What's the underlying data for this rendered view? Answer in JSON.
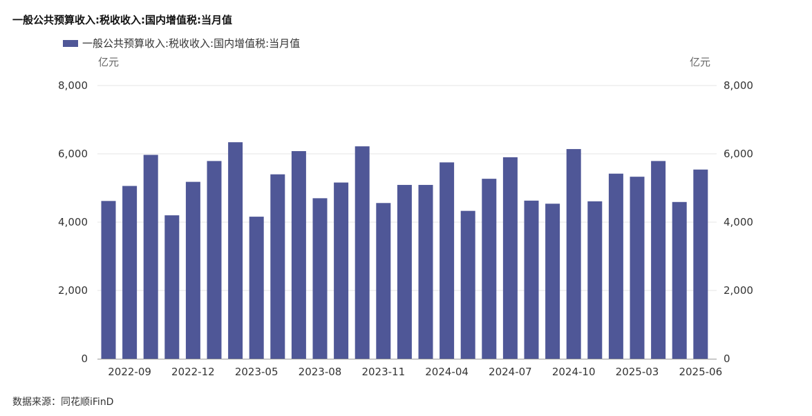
{
  "chart_data": {
    "type": "bar",
    "title": "一般公共预算收入:税收收入:国内增值税:当月值",
    "legend": "top-left",
    "grid": true,
    "ylabel_left": "亿元",
    "ylabel_right": "亿元",
    "ylim": [
      0,
      8000
    ],
    "yticks": [
      "0",
      "2,000",
      "4,000",
      "6,000",
      "8,000"
    ],
    "xticks": [
      "2022-09",
      "2022-12",
      "2023-05",
      "2023-08",
      "2023-11",
      "2024-04",
      "2024-07",
      "2024-10",
      "2025-03",
      "2025-06"
    ],
    "color": "#4f5797",
    "series": [
      {
        "name": "一般公共预算收入:税收收入:国内增值税:当月值",
        "values": [
          4620,
          5060,
          5970,
          4200,
          5180,
          5790,
          6340,
          4160,
          5400,
          6080,
          4700,
          5160,
          6220,
          4560,
          5090,
          5090,
          5750,
          4330,
          5270,
          5900,
          4630,
          4540,
          6140,
          4610,
          5420,
          5330,
          5790,
          4590,
          5540
        ]
      }
    ]
  },
  "footer": "数据来源：同花顺iFinD"
}
